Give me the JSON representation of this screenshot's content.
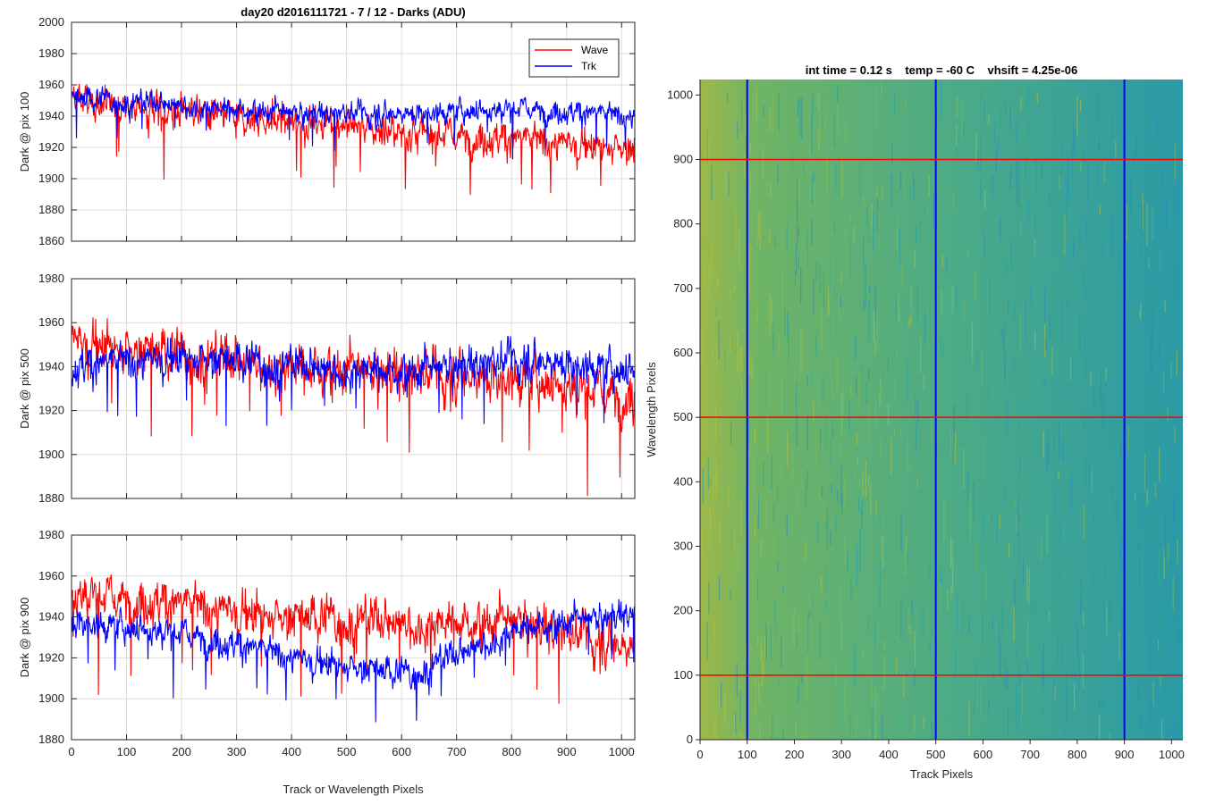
{
  "figure_title": "day20 d2016111721 - 7 / 12 - Darks (ADU)",
  "chart_data": [
    {
      "type": "line",
      "ylabel": "Dark @ pix 100",
      "xlim": [
        0,
        1024
      ],
      "ylim": [
        1860,
        2000
      ],
      "xticks": [
        0,
        100,
        200,
        300,
        400,
        500,
        600,
        700,
        800,
        900,
        1000
      ],
      "yticks": [
        1860,
        1880,
        1900,
        1920,
        1940,
        1960,
        1980,
        2000
      ],
      "grid": true,
      "legend": "top-right",
      "series": [
        {
          "name": "Wave",
          "color": "#ff0000",
          "level": [
            1950,
            1942,
            1936,
            1930,
            1925,
            1920
          ],
          "noise": 9
        },
        {
          "name": "Trk",
          "color": "#0000ff",
          "level": [
            1952,
            1947,
            1942,
            1942,
            1945,
            1940
          ],
          "noise": 6
        }
      ]
    },
    {
      "type": "line",
      "ylabel": "Dark @ pix 500",
      "xlim": [
        0,
        1024
      ],
      "ylim": [
        1880,
        1980
      ],
      "xticks": [
        0,
        100,
        200,
        300,
        400,
        500,
        600,
        700,
        800,
        900,
        1000
      ],
      "yticks": [
        1880,
        1900,
        1920,
        1940,
        1960,
        1980
      ],
      "grid": true,
      "series": [
        {
          "name": "Wave",
          "color": "#ff0000",
          "level": [
            1952,
            1945,
            1940,
            1937,
            1935,
            1926
          ],
          "noise": 9
        },
        {
          "name": "Trk",
          "color": "#0000ff",
          "level": [
            1940,
            1945,
            1940,
            1938,
            1944,
            1938
          ],
          "noise": 7
        }
      ]
    },
    {
      "type": "line",
      "ylabel": "Dark @ pix 900",
      "xlabel": "Track or Wavelength Pixels",
      "xlim": [
        0,
        1024
      ],
      "ylim": [
        1880,
        1980
      ],
      "xticks": [
        0,
        100,
        200,
        300,
        400,
        500,
        600,
        700,
        800,
        900,
        1000
      ],
      "yticks": [
        1880,
        1900,
        1920,
        1940,
        1960,
        1980
      ],
      "grid": true,
      "series": [
        {
          "name": "Wave",
          "color": "#ff0000",
          "level": [
            1952,
            1946,
            1940,
            1937,
            1938,
            1925
          ],
          "noise": 9
        },
        {
          "name": "Trk",
          "color": "#0000ff",
          "level": [
            1938,
            1932,
            1920,
            1912,
            1935,
            1942
          ],
          "noise": 6
        }
      ]
    },
    {
      "type": "heatmap",
      "title": "int time = 0.12 s    temp = -60 C    vhsift = 4.25e-06",
      "xlabel": "Track Pixels",
      "ylabel": "Wavelength Pixels",
      "xlim": [
        0,
        1024
      ],
      "ylim": [
        0,
        1024
      ],
      "xticks": [
        0,
        100,
        200,
        300,
        400,
        500,
        600,
        700,
        800,
        900,
        1000
      ],
      "yticks": [
        0,
        100,
        200,
        300,
        400,
        500,
        600,
        700,
        800,
        900,
        1000
      ],
      "vertical_lines": [
        100,
        500,
        900
      ],
      "horizontal_lines": [
        100,
        500,
        900
      ],
      "vertical_line_color": "#0000ff",
      "horizontal_line_color": "#ff0000",
      "colors": [
        "#8cb84a",
        "#1f9aa8"
      ]
    }
  ]
}
